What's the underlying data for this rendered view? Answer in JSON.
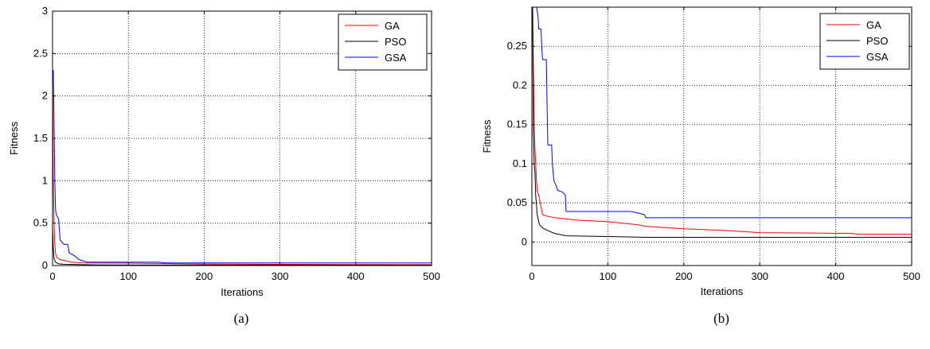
{
  "chart_data": [
    {
      "type": "line",
      "caption": "(a)",
      "xlabel": "Iterations",
      "ylabel": "Fitness",
      "xlim": [
        0,
        500
      ],
      "ylim": [
        0,
        3
      ],
      "xticks": [
        "0",
        "100",
        "200",
        "300",
        "400",
        "500"
      ],
      "yticks": [
        "0",
        "0.5",
        "1",
        "1.5",
        "2",
        "2.5",
        "3"
      ],
      "grid": true,
      "legend": "top-right",
      "series": [
        {
          "name": "GA",
          "color": "#ff0000",
          "points": [
            [
              0,
              2.2
            ],
            [
              1,
              1.0
            ],
            [
              2,
              0.5
            ],
            [
              3,
              0.25
            ],
            [
              4,
              0.14
            ],
            [
              6,
              0.09
            ],
            [
              10,
              0.07
            ],
            [
              15,
              0.06
            ],
            [
              25,
              0.04
            ],
            [
              40,
              0.03
            ],
            [
              100,
              0.028
            ],
            [
              200,
              0.018
            ],
            [
              300,
              0.014
            ],
            [
              400,
              0.012
            ],
            [
              500,
              0.01
            ]
          ]
        },
        {
          "name": "PSO",
          "color": "#000000",
          "points": [
            [
              0,
              0.45
            ],
            [
              1,
              0.2
            ],
            [
              2,
              0.08
            ],
            [
              4,
              0.04
            ],
            [
              8,
              0.02
            ],
            [
              15,
              0.015
            ],
            [
              50,
              0.008
            ],
            [
              100,
              0.006
            ],
            [
              500,
              0.005
            ]
          ]
        },
        {
          "name": "GSA",
          "color": "#0000ff",
          "points": [
            [
              0,
              2.3
            ],
            [
              1,
              2.3
            ],
            [
              2,
              1.7
            ],
            [
              3,
              1.0
            ],
            [
              4,
              0.65
            ],
            [
              5,
              0.6
            ],
            [
              8,
              0.55
            ],
            [
              10,
              0.3
            ],
            [
              15,
              0.25
            ],
            [
              20,
              0.25
            ],
            [
              22,
              0.15
            ],
            [
              28,
              0.12
            ],
            [
              35,
              0.07
            ],
            [
              45,
              0.04
            ],
            [
              100,
              0.04
            ],
            [
              140,
              0.04
            ],
            [
              150,
              0.03
            ],
            [
              500,
              0.03
            ]
          ]
        }
      ]
    },
    {
      "type": "line",
      "caption": "(b)",
      "xlabel": "Iterations",
      "ylabel": "Fitness",
      "xlim": [
        0,
        500
      ],
      "ylim": [
        -0.03,
        0.3
      ],
      "xticks": [
        "0",
        "100",
        "200",
        "300",
        "400",
        "500"
      ],
      "yticks": [
        "0",
        "0.05",
        "0.1",
        "0.15",
        "0.2",
        "0.25"
      ],
      "grid": true,
      "legend": "top-right",
      "series": [
        {
          "name": "GA",
          "color": "#ff0000",
          "points": [
            [
              0,
              0.3
            ],
            [
              1,
              0.3
            ],
            [
              2,
              0.22
            ],
            [
              3,
              0.15
            ],
            [
              4,
              0.12
            ],
            [
              5,
              0.1
            ],
            [
              6,
              0.08
            ],
            [
              7,
              0.065
            ],
            [
              9,
              0.06
            ],
            [
              10,
              0.055
            ],
            [
              12,
              0.045
            ],
            [
              14,
              0.035
            ],
            [
              20,
              0.033
            ],
            [
              30,
              0.031
            ],
            [
              40,
              0.03
            ],
            [
              60,
              0.028
            ],
            [
              100,
              0.026
            ],
            [
              140,
              0.022
            ],
            [
              150,
              0.02
            ],
            [
              200,
              0.017
            ],
            [
              250,
              0.015
            ],
            [
              300,
              0.012
            ],
            [
              420,
              0.011
            ],
            [
              430,
              0.01
            ],
            [
              500,
              0.01
            ]
          ]
        },
        {
          "name": "PSO",
          "color": "#000000",
          "points": [
            [
              0,
              0.3
            ],
            [
              1,
              0.3
            ],
            [
              2,
              0.14
            ],
            [
              3,
              0.1
            ],
            [
              4,
              0.09
            ],
            [
              5,
              0.06
            ],
            [
              7,
              0.035
            ],
            [
              10,
              0.022
            ],
            [
              14,
              0.018
            ],
            [
              20,
              0.015
            ],
            [
              30,
              0.011
            ],
            [
              45,
              0.008
            ],
            [
              100,
              0.007
            ],
            [
              150,
              0.006
            ],
            [
              500,
              0.006
            ]
          ]
        },
        {
          "name": "GSA",
          "color": "#0000ff",
          "points": [
            [
              0,
              0.3
            ],
            [
              5,
              0.3
            ],
            [
              6,
              0.3
            ],
            [
              7,
              0.295
            ],
            [
              8,
              0.29
            ],
            [
              9,
              0.272
            ],
            [
              12,
              0.272
            ],
            [
              13,
              0.25
            ],
            [
              14,
              0.233
            ],
            [
              19,
              0.233
            ],
            [
              20,
              0.175
            ],
            [
              21,
              0.124
            ],
            [
              26,
              0.124
            ],
            [
              27,
              0.1
            ],
            [
              29,
              0.078
            ],
            [
              31,
              0.074
            ],
            [
              34,
              0.066
            ],
            [
              40,
              0.064
            ],
            [
              44,
              0.06
            ],
            [
              45,
              0.039
            ],
            [
              60,
              0.039
            ],
            [
              100,
              0.039
            ],
            [
              130,
              0.039
            ],
            [
              140,
              0.037
            ],
            [
              148,
              0.035
            ],
            [
              150,
              0.031
            ],
            [
              200,
              0.031
            ],
            [
              500,
              0.031
            ]
          ]
        }
      ]
    }
  ]
}
